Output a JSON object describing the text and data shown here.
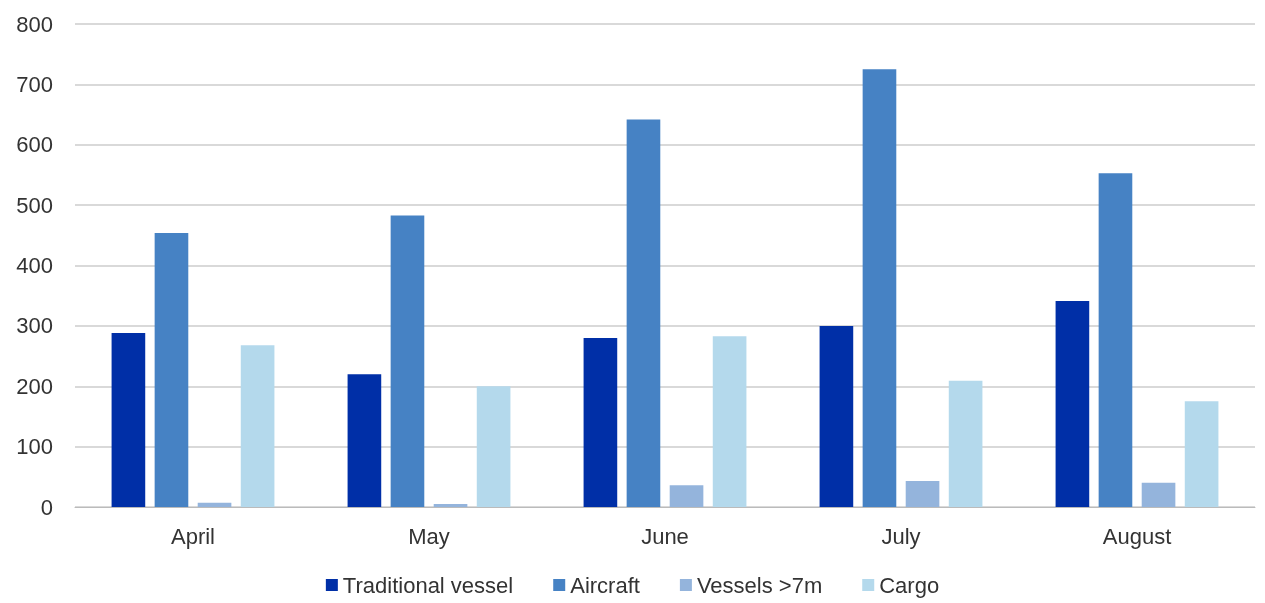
{
  "chart_data": {
    "type": "bar",
    "categories": [
      "April",
      "May",
      "June",
      "July",
      "August"
    ],
    "series": [
      {
        "name": "Traditional vessel",
        "color": "#002fa7",
        "values": [
          288,
          220,
          280,
          300,
          341
        ]
      },
      {
        "name": "Aircraft",
        "color": "#4682c4",
        "values": [
          454,
          483,
          642,
          725,
          553
        ]
      },
      {
        "name": "Vessels >7m",
        "color": "#94b4dc",
        "values": [
          7,
          5,
          36,
          43,
          40
        ]
      },
      {
        "name": "Cargo",
        "color": "#b4d9ec",
        "values": [
          268,
          200,
          283,
          209,
          175
        ]
      }
    ],
    "ylim": [
      0,
      800
    ],
    "yticks": [
      0,
      100,
      200,
      300,
      400,
      500,
      600,
      700,
      800
    ],
    "grid": "y",
    "legend": "bottom"
  }
}
